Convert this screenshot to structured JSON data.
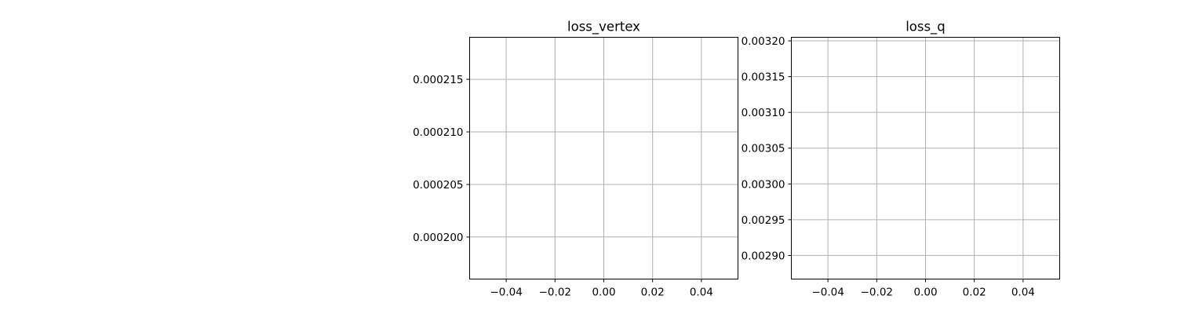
{
  "chart_data": [
    {
      "type": "line",
      "title": "loss_vertex",
      "xlabel": "",
      "ylabel": "",
      "xlim": [
        -0.055,
        0.055
      ],
      "ylim": [
        0.000196,
        0.000219
      ],
      "x_ticks": [
        -0.04,
        -0.02,
        0.0,
        0.02,
        0.04
      ],
      "x_tick_labels": [
        "−0.04",
        "−0.02",
        "0.00",
        "0.02",
        "0.04"
      ],
      "y_ticks": [
        0.0002,
        0.000205,
        0.00021,
        0.000215
      ],
      "y_tick_labels": [
        "0.000200",
        "0.000205",
        "0.000210",
        "0.000215"
      ],
      "grid": true,
      "series": []
    },
    {
      "type": "line",
      "title": "loss_q",
      "xlabel": "",
      "ylabel": "",
      "xlim": [
        -0.055,
        0.055
      ],
      "ylim": [
        0.002867,
        0.003205
      ],
      "x_ticks": [
        -0.04,
        -0.02,
        0.0,
        0.02,
        0.04
      ],
      "x_tick_labels": [
        "−0.04",
        "−0.02",
        "0.00",
        "0.02",
        "0.04"
      ],
      "y_ticks": [
        0.0029,
        0.00295,
        0.003,
        0.00305,
        0.0031,
        0.00315,
        0.0032
      ],
      "y_tick_labels": [
        "0.00290",
        "0.00295",
        "0.00300",
        "0.00305",
        "0.00310",
        "0.00315",
        "0.00320"
      ],
      "grid": true,
      "series": []
    }
  ]
}
